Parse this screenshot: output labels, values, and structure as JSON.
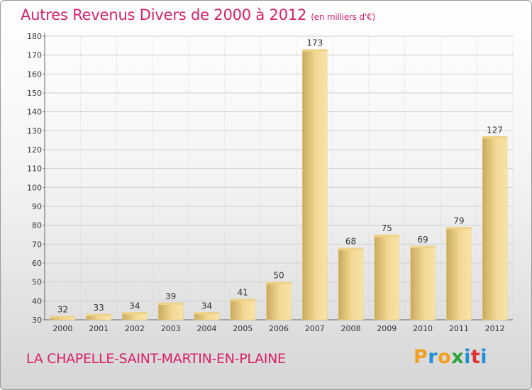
{
  "header": {
    "title": "Autres Revenus Divers de 2000 à 2012",
    "unit": "(en milliers d'€)"
  },
  "footer": {
    "place": "LA CHAPELLE-SAINT-MARTIN-EN-PLAINE",
    "logo_letters": [
      "P",
      "r",
      "o",
      "x",
      "i",
      "t",
      "i"
    ],
    "logo_colors": [
      "#f0a020",
      "#1f8fd6",
      "#f0a020",
      "#2aa43a",
      "#1f8fd6",
      "#e03030",
      "#1f8fd6"
    ]
  },
  "colors": {
    "title": "#d8206a",
    "bar_light": "#f5dc96",
    "bar_dark": "#c8a85a",
    "grid": "#cfcfcf"
  },
  "chart_data": {
    "type": "bar",
    "title": "Autres Revenus Divers de 2000 à 2012",
    "ylabel": "(en milliers d'€)",
    "categories": [
      "2000",
      "2001",
      "2002",
      "2003",
      "2004",
      "2005",
      "2006",
      "2007",
      "2008",
      "2009",
      "2010",
      "2011",
      "2012"
    ],
    "values": [
      32,
      33,
      34,
      39,
      34,
      41,
      50,
      173,
      68,
      75,
      69,
      79,
      127
    ],
    "ylim": [
      30,
      180
    ],
    "yticks": [
      30,
      40,
      50,
      60,
      70,
      80,
      90,
      100,
      110,
      120,
      130,
      140,
      150,
      160,
      170,
      180
    ],
    "grid": true,
    "legend": "none"
  }
}
